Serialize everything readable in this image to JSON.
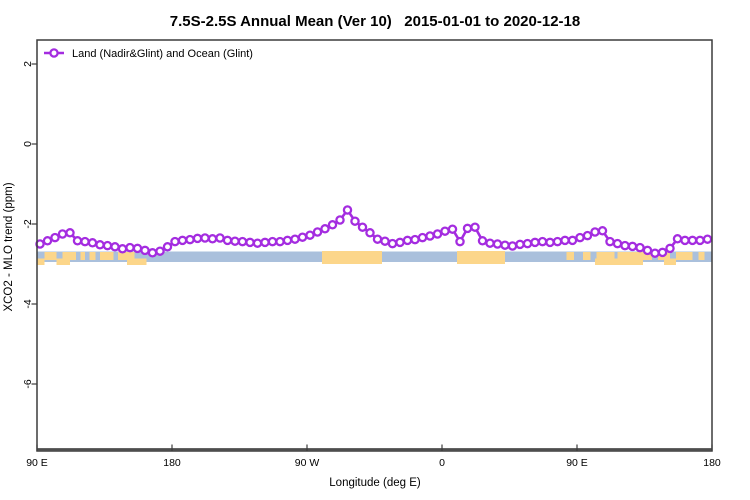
{
  "title": "7.5S-2.5S Annual Mean (Ver 10)   2015-01-01 to 2020-12-18",
  "legend": {
    "label": "Land (Nadir&Glint) and Ocean (Glint)",
    "marker": "open-circle"
  },
  "axes": {
    "x": {
      "label": "Longitude (deg E)",
      "range": [
        90,
        540
      ],
      "ticks": [
        {
          "lon": 90,
          "label": "90 E"
        },
        {
          "lon": 180,
          "label": "180"
        },
        {
          "lon": 270,
          "label": "90 W"
        },
        {
          "lon": 360,
          "label": "0"
        },
        {
          "lon": 450,
          "label": "90 E"
        },
        {
          "lon": 540,
          "label": "180"
        }
      ]
    },
    "y": {
      "label": "XCO2 - MLO trend (ppm)",
      "range": [
        -7.7,
        2.6
      ],
      "ticks": [
        2,
        0,
        -2,
        -4,
        -6
      ]
    }
  },
  "colors": {
    "line": "#A42CE0",
    "marker_fill": "#FFFFFF",
    "ocean": "#AAC0DC",
    "land": "#FCD68A",
    "axis": "#3C3C3C",
    "axis_heavy": "#4D4D4D",
    "text": "#000000"
  },
  "chart_data": {
    "type": "line",
    "title": "7.5S-2.5S Annual Mean (Ver 10)   2015-01-01 to 2020-12-18",
    "xlabel": "Longitude (deg E)",
    "ylabel": "XCO2 - MLO trend (ppm)",
    "xlim": [
      90,
      540
    ],
    "ylim": [
      -7.7,
      2.6
    ],
    "grid": false,
    "legend_position": "top-left-inside",
    "series": [
      {
        "name": "Land (Nadir&Glint) and Ocean (Glint)",
        "marker": "open-circle",
        "x": [
          92,
          97,
          102,
          107,
          112,
          117,
          122,
          127,
          132,
          137,
          142,
          147,
          152,
          157,
          162,
          167,
          172,
          177,
          182,
          187,
          192,
          197,
          202,
          207,
          212,
          217,
          222,
          227,
          232,
          237,
          242,
          247,
          252,
          257,
          262,
          267,
          272,
          277,
          282,
          287,
          292,
          297,
          302,
          307,
          312,
          317,
          322,
          327,
          332,
          337,
          342,
          347,
          352,
          357,
          362,
          367,
          372,
          377,
          382,
          387,
          392,
          397,
          402,
          407,
          412,
          417,
          422,
          427,
          432,
          437,
          442,
          447,
          452,
          457,
          462,
          467,
          472,
          477,
          482,
          487,
          492,
          497,
          502,
          507,
          512,
          517,
          522,
          527,
          532,
          537
        ],
        "values": [
          -2.5,
          -2.42,
          -2.34,
          -2.25,
          -2.22,
          -2.42,
          -2.44,
          -2.47,
          -2.52,
          -2.54,
          -2.57,
          -2.62,
          -2.59,
          -2.61,
          -2.66,
          -2.72,
          -2.68,
          -2.57,
          -2.44,
          -2.41,
          -2.39,
          -2.36,
          -2.35,
          -2.37,
          -2.35,
          -2.41,
          -2.43,
          -2.44,
          -2.46,
          -2.48,
          -2.46,
          -2.44,
          -2.44,
          -2.41,
          -2.38,
          -2.33,
          -2.28,
          -2.2,
          -2.12,
          -2.02,
          -1.9,
          -1.65,
          -1.93,
          -2.08,
          -2.22,
          -2.38,
          -2.43,
          -2.49,
          -2.46,
          -2.41,
          -2.39,
          -2.34,
          -2.3,
          -2.25,
          -2.18,
          -2.13,
          -2.44,
          -2.11,
          -2.08,
          -2.42,
          -2.48,
          -2.5,
          -2.53,
          -2.55,
          -2.51,
          -2.49,
          -2.46,
          -2.44,
          -2.46,
          -2.44,
          -2.41,
          -2.41,
          -2.34,
          -2.29,
          -2.2,
          -2.17,
          -2.44,
          -2.49,
          -2.54,
          -2.56,
          -2.59,
          -2.66,
          -2.73,
          -2.71,
          -2.61,
          -2.37,
          -2.41,
          -2.41,
          -2.41,
          -2.38
        ]
      }
    ],
    "map_band": {
      "ocean": {
        "start": 90,
        "end": 540
      },
      "land": [
        [
          280,
          320
        ],
        [
          370,
          402
        ]
      ],
      "islands": [
        [
          95,
          103
        ],
        [
          107,
          116
        ],
        [
          119,
          122
        ],
        [
          125,
          129
        ],
        [
          132,
          141
        ],
        [
          144,
          155
        ],
        [
          443,
          448
        ],
        [
          454,
          459
        ],
        [
          463,
          475
        ],
        [
          477,
          500
        ],
        [
          504,
          512
        ],
        [
          516,
          527
        ],
        [
          531,
          535
        ]
      ],
      "islands_low": [
        [
          90,
          95
        ],
        [
          103,
          112
        ],
        [
          150,
          163
        ],
        [
          462,
          494
        ],
        [
          508,
          516
        ]
      ]
    }
  }
}
